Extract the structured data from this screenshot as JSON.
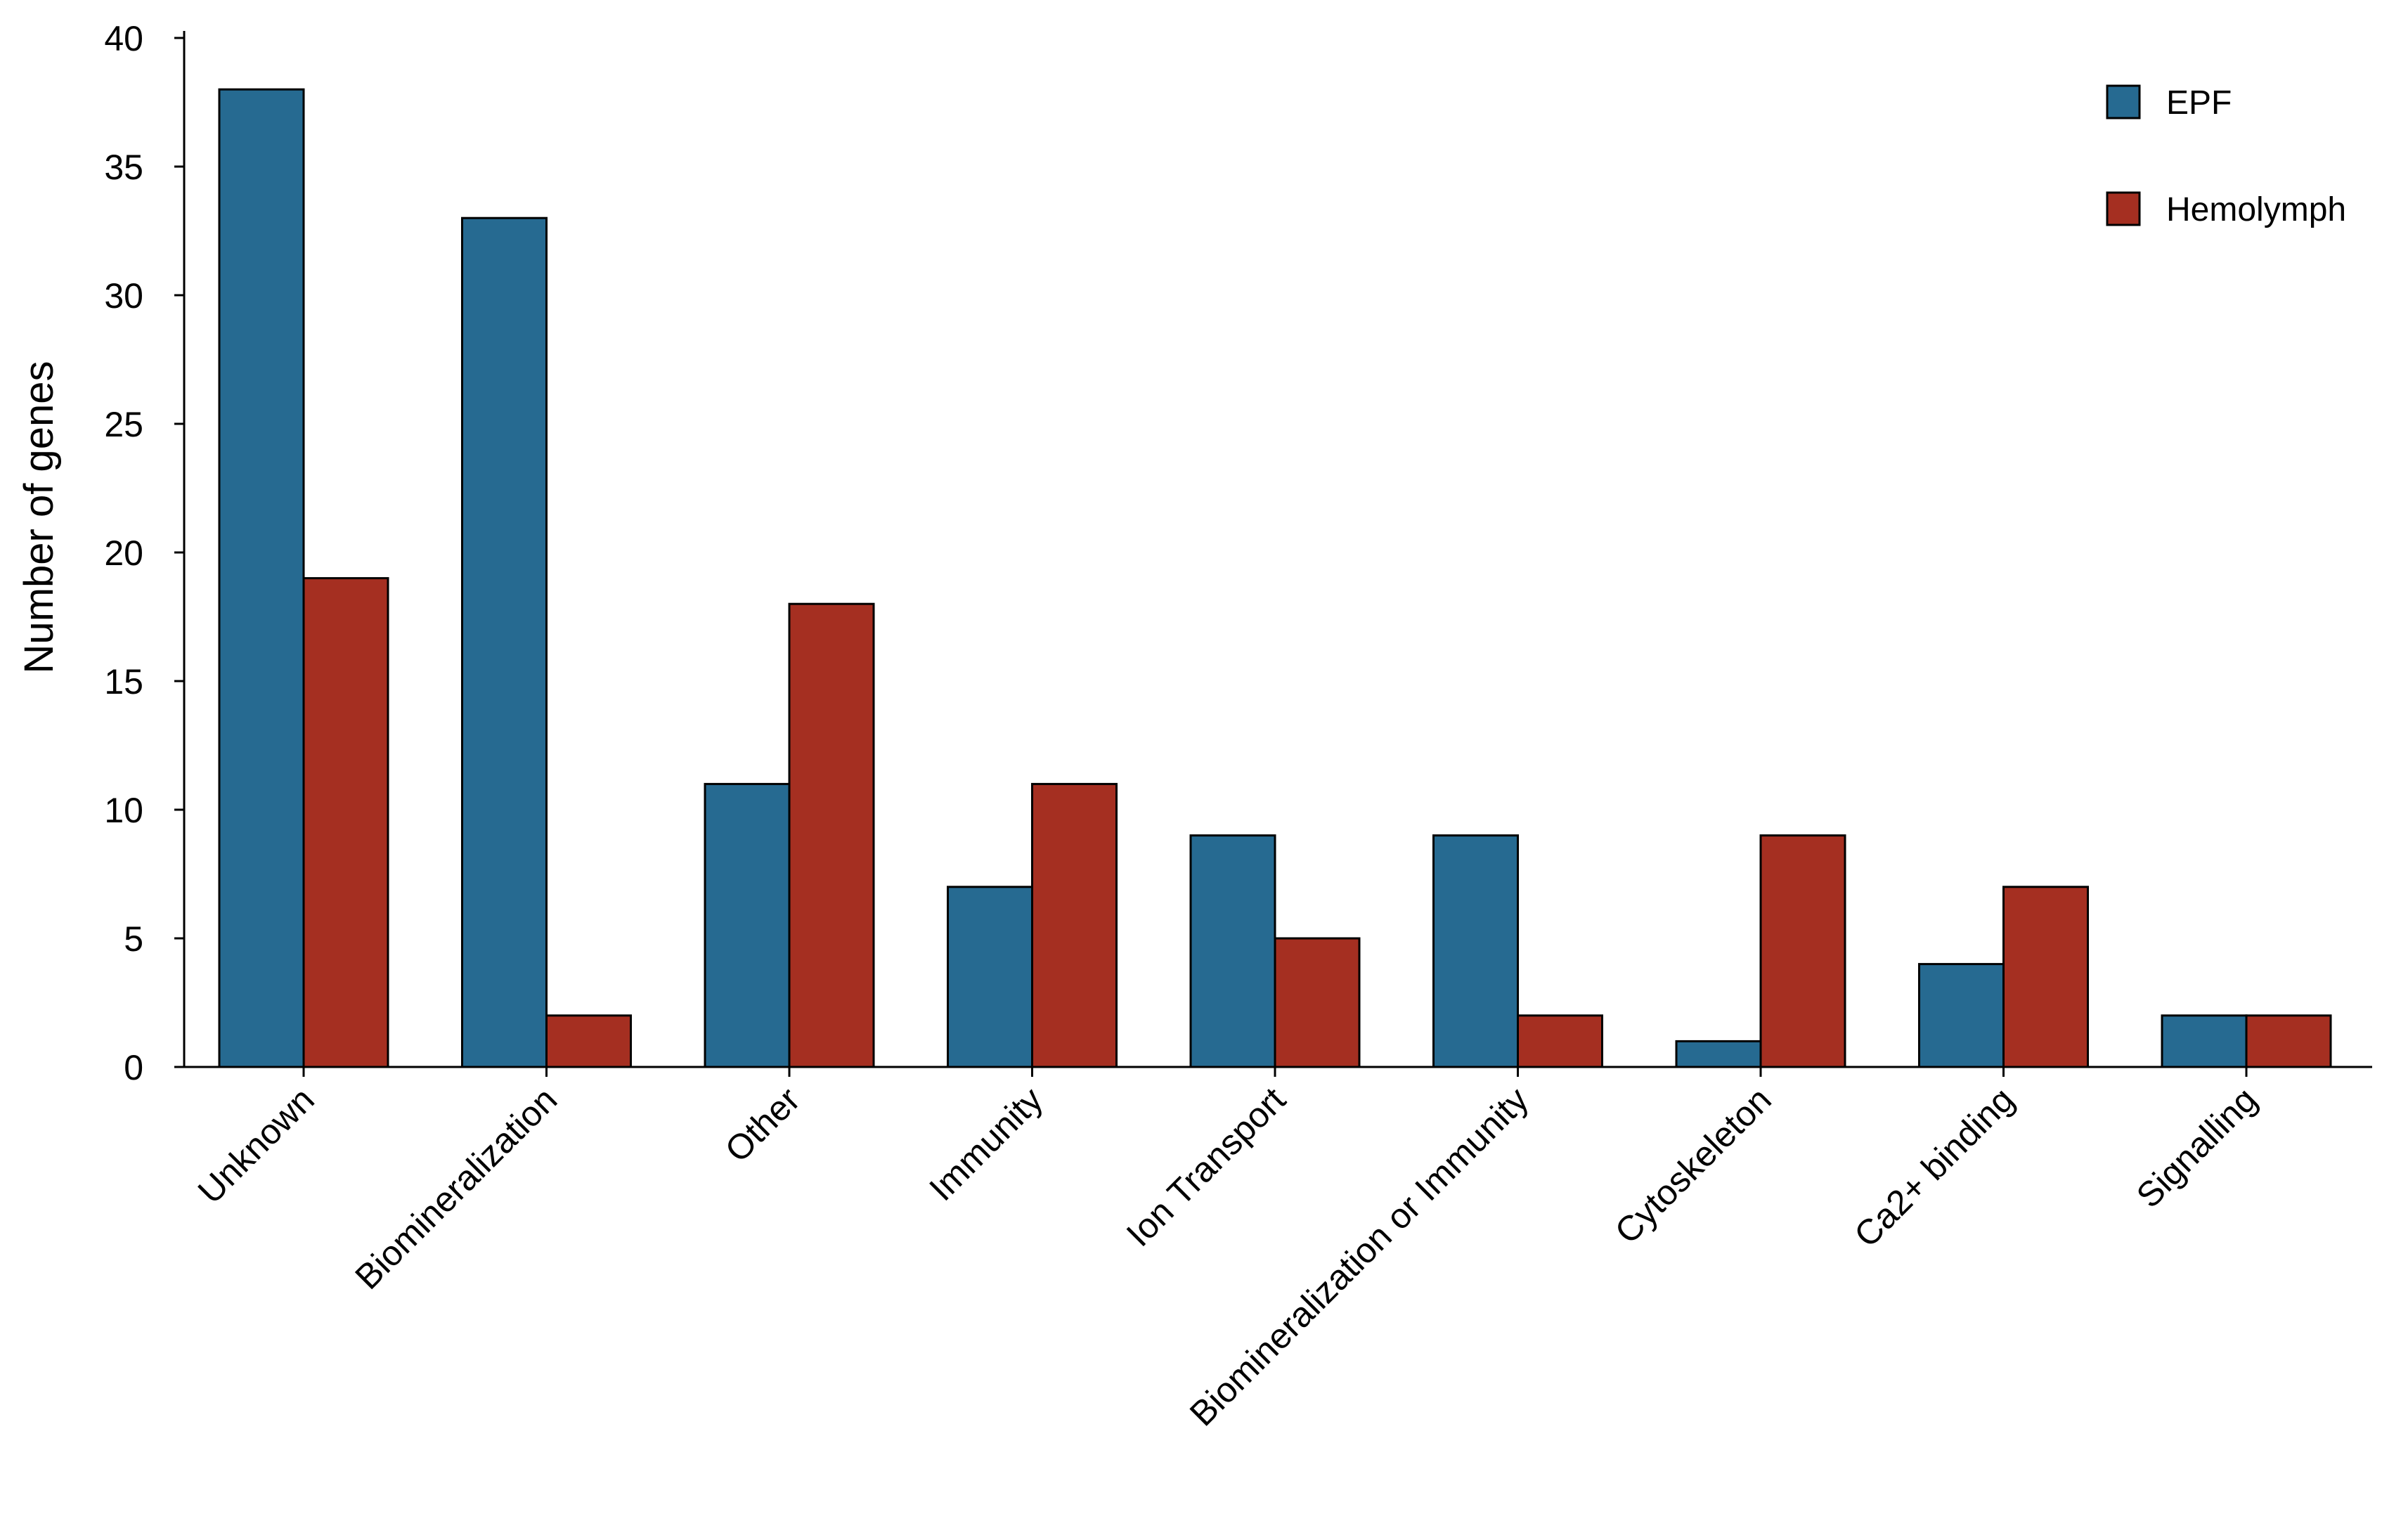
{
  "chart_data": {
    "type": "bar",
    "title": "",
    "xlabel": "",
    "ylabel": "Number of genes",
    "ylim": [
      0,
      40
    ],
    "yticks": [
      0,
      5,
      10,
      15,
      20,
      25,
      30,
      35,
      40
    ],
    "grid": false,
    "legend_position": "top-right",
    "categories": [
      "Unknown",
      "Biomineralization",
      "Other",
      "Immunity",
      "Ion Transport",
      "Biomineralization or Immunity",
      "Cytoskeleton",
      "Ca2+ binding",
      "Signalling"
    ],
    "series": [
      {
        "name": "EPF",
        "color": "#266a91",
        "values": [
          38,
          33,
          11,
          7,
          9,
          9,
          1,
          4,
          2
        ]
      },
      {
        "name": "Hemolymph",
        "color": "#a52f21",
        "values": [
          19,
          2,
          18,
          11,
          5,
          2,
          9,
          7,
          2
        ]
      }
    ]
  }
}
